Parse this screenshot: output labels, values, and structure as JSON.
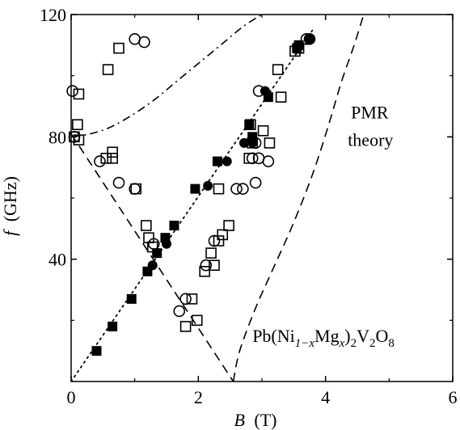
{
  "chart_data": {
    "type": "scatter",
    "xlabel": {
      "symbol": "B",
      "unit": "(T)"
    },
    "ylabel": {
      "symbol": "f",
      "unit": "(GHz)"
    },
    "xlim": [
      0,
      6
    ],
    "ylim": [
      0,
      120
    ],
    "x_ticks": [
      0,
      2,
      4,
      6
    ],
    "y_ticks": [
      40,
      80,
      120
    ],
    "x_tick_labels": [
      "0",
      "2",
      "4",
      "6"
    ],
    "y_tick_labels": [
      "40",
      "80",
      "120"
    ],
    "grid": false,
    "annotations": {
      "theory_label_line1": "PMR",
      "theory_label_line2": "theory",
      "compound": {
        "prefix": "Pb(Ni",
        "sub1": "1−x",
        "mid": "Mg",
        "sub2": "x",
        "close": ")",
        "sub3": "2",
        "v": "V",
        "sub4": "2",
        "o": "O",
        "sub5": "8"
      }
    },
    "series": [
      {
        "marker": "filled-square",
        "points": [
          [
            0.4,
            10
          ],
          [
            0.65,
            18
          ],
          [
            0.95,
            27
          ],
          [
            1.2,
            36
          ],
          [
            1.35,
            42
          ],
          [
            1.48,
            47
          ],
          [
            1.62,
            51
          ],
          [
            1.95,
            63
          ],
          [
            2.3,
            72
          ],
          [
            2.8,
            84
          ],
          [
            2.85,
            80
          ],
          [
            3.1,
            93
          ],
          [
            3.55,
            109
          ],
          [
            3.58,
            110
          ]
        ]
      },
      {
        "marker": "filled-circle",
        "points": [
          [
            1.28,
            38
          ],
          [
            1.5,
            45
          ],
          [
            2.15,
            64
          ],
          [
            2.45,
            72
          ],
          [
            2.72,
            78
          ],
          [
            2.85,
            78
          ],
          [
            3.05,
            95
          ],
          [
            3.75,
            112
          ]
        ]
      },
      {
        "marker": "open-square",
        "points": [
          [
            0.12,
            94
          ],
          [
            0.1,
            84
          ],
          [
            0.05,
            80
          ],
          [
            0.12,
            79
          ],
          [
            0.58,
            102
          ],
          [
            0.75,
            109
          ],
          [
            0.55,
            73
          ],
          [
            0.65,
            73
          ],
          [
            0.65,
            75
          ],
          [
            1.02,
            63
          ],
          [
            1.18,
            51
          ],
          [
            1.22,
            47
          ],
          [
            1.28,
            44
          ],
          [
            1.9,
            27
          ],
          [
            1.8,
            18
          ],
          [
            1.98,
            20
          ],
          [
            2.1,
            36
          ],
          [
            2.25,
            38
          ],
          [
            2.2,
            42
          ],
          [
            2.32,
            46
          ],
          [
            2.38,
            48
          ],
          [
            2.48,
            51
          ],
          [
            2.32,
            63
          ],
          [
            2.8,
            73
          ],
          [
            2.85,
            78
          ],
          [
            2.82,
            84
          ],
          [
            3.02,
            82
          ],
          [
            3.12,
            78
          ],
          [
            3.25,
            102
          ],
          [
            3.3,
            93
          ],
          [
            3.52,
            108
          ],
          [
            3.58,
            109
          ]
        ]
      },
      {
        "marker": "open-circle",
        "points": [
          [
            0.02,
            95
          ],
          [
            0.05,
            80
          ],
          [
            1.0,
            112
          ],
          [
            1.15,
            111
          ],
          [
            0.45,
            72
          ],
          [
            0.75,
            65
          ],
          [
            1.0,
            63
          ],
          [
            1.3,
            45
          ],
          [
            1.8,
            27
          ],
          [
            1.7,
            23
          ],
          [
            2.12,
            38
          ],
          [
            2.25,
            46
          ],
          [
            2.6,
            63
          ],
          [
            2.7,
            63
          ],
          [
            2.9,
            65
          ],
          [
            2.85,
            73
          ],
          [
            2.95,
            95
          ],
          [
            2.95,
            73
          ],
          [
            3.1,
            72
          ],
          [
            3.7,
            112
          ],
          [
            3.75,
            112
          ],
          [
            2.9,
            78
          ]
        ]
      }
    ],
    "theory_curves": [
      {
        "style": "dashed",
        "kind": "line",
        "points": [
          [
            0,
            81
          ],
          [
            2.55,
            0
          ]
        ]
      },
      {
        "style": "dashed",
        "kind": "curve",
        "points": [
          [
            2.55,
            0
          ],
          [
            2.65,
            10
          ],
          [
            2.9,
            24
          ],
          [
            3.2,
            38
          ],
          [
            3.5,
            52
          ],
          [
            3.8,
            68
          ],
          [
            4.05,
            84
          ],
          [
            4.25,
            98
          ],
          [
            4.45,
            110
          ],
          [
            4.6,
            120
          ]
        ]
      },
      {
        "style": "dash-dot",
        "kind": "curve",
        "points": [
          [
            0.02,
            80
          ],
          [
            0.3,
            81
          ],
          [
            0.6,
            83
          ],
          [
            0.95,
            87
          ],
          [
            1.3,
            92
          ],
          [
            1.65,
            98
          ],
          [
            2.0,
            104
          ],
          [
            2.35,
            110
          ],
          [
            2.7,
            116
          ],
          [
            3.0,
            120
          ]
        ]
      },
      {
        "style": "dotted",
        "kind": "line",
        "points": [
          [
            0,
            0
          ],
          [
            3.8,
            115
          ]
        ]
      }
    ]
  }
}
